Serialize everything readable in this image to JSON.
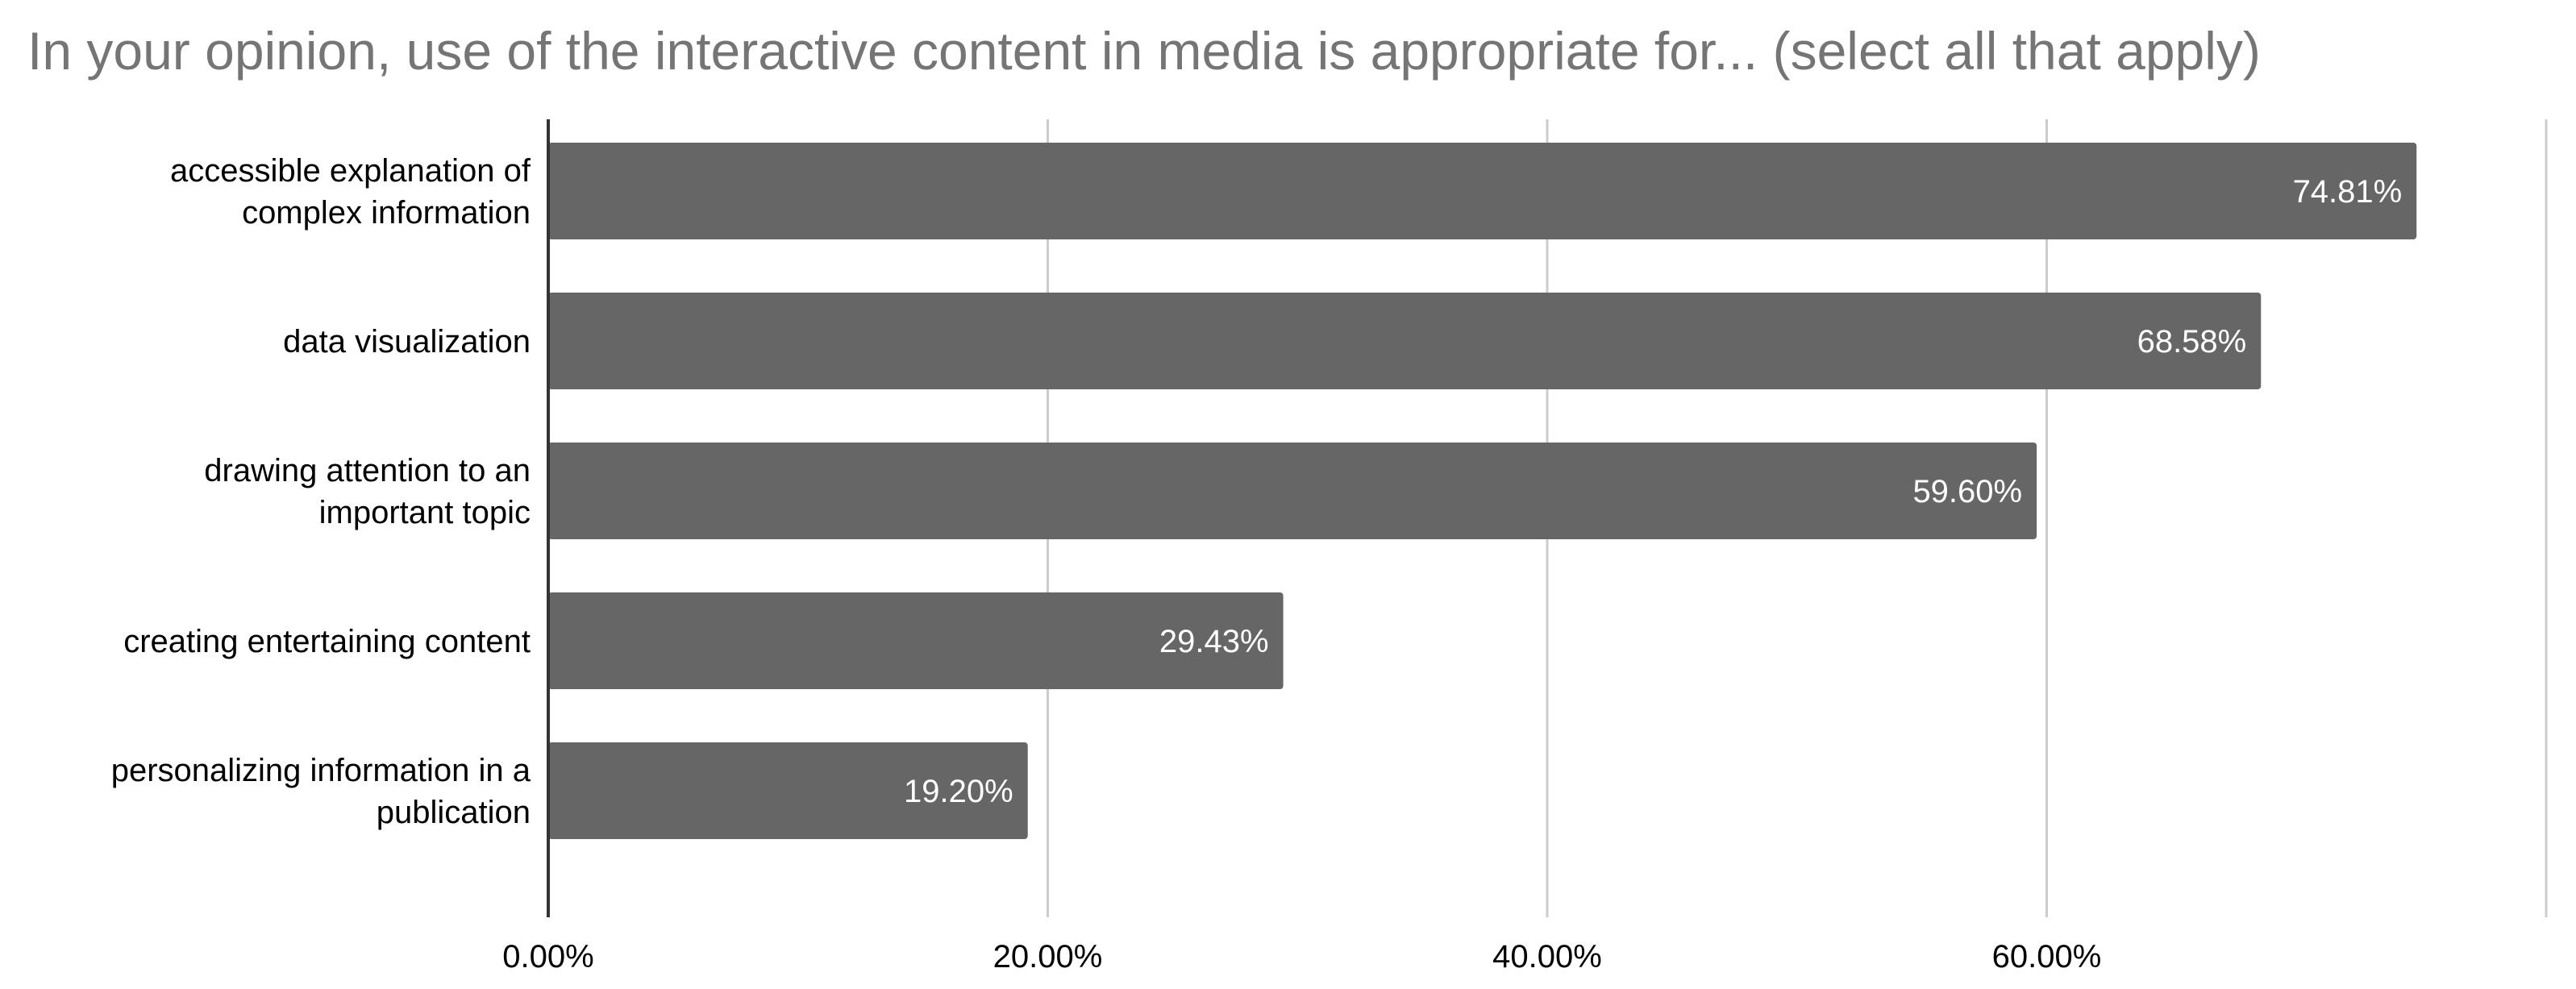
{
  "chart_data": {
    "type": "bar",
    "orientation": "horizontal",
    "title": "In your opinion, use of the interactive content in media is appropriate for... (select all that apply)",
    "categories": [
      [
        "accessible explanation of",
        "complex information"
      ],
      [
        "data visualization"
      ],
      [
        "drawing attention to an",
        "important topic"
      ],
      [
        "creating entertaining content"
      ],
      [
        "personalizing information in a",
        "publication"
      ]
    ],
    "values": [
      74.81,
      68.58,
      59.6,
      29.43,
      19.2
    ],
    "value_labels": [
      "74.81%",
      "68.58%",
      "59.60%",
      "29.43%",
      "19.20%"
    ],
    "xlim": [
      0,
      80
    ],
    "x_ticks": [
      0,
      20,
      40,
      60
    ],
    "x_tick_labels": [
      "0.00%",
      "20.00%",
      "40.00%",
      "60.00%"
    ],
    "grid": true,
    "legend": "none",
    "colors": {
      "bar": "#666666",
      "title": "#757575",
      "grid": "#cccccc",
      "axis": "#333333",
      "label": "#000000",
      "value_label": "#ffffff"
    }
  }
}
